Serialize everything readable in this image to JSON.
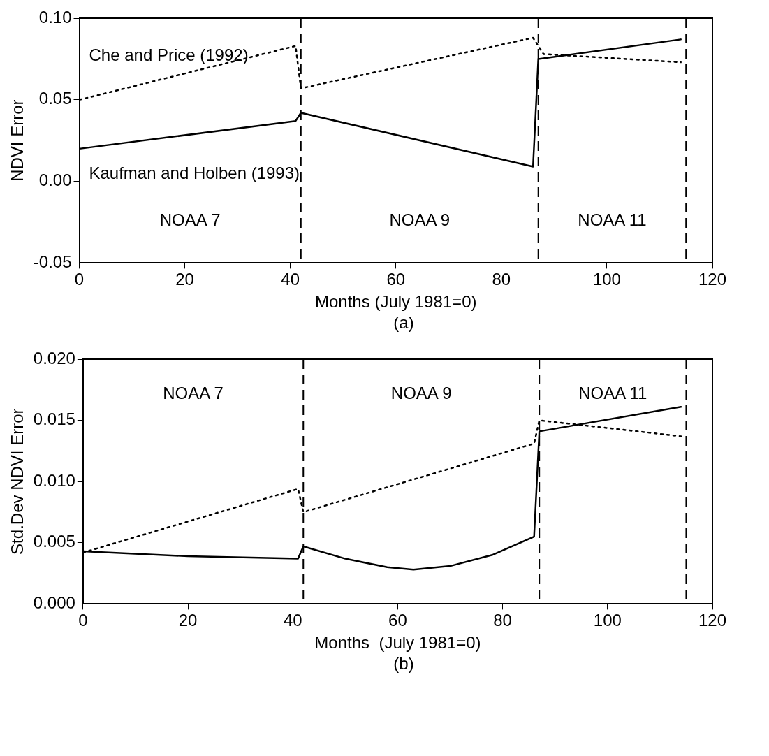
{
  "chart_data": [
    {
      "type": "line",
      "xlabel": "Months (July 1981=0)",
      "ylabel": "NDVI Error",
      "xlim": [
        0,
        120
      ],
      "xticks": [
        0,
        20,
        40,
        60,
        80,
        100,
        120
      ],
      "ylim": [
        -0.05,
        0.1
      ],
      "yticks": [
        {
          "value": -0.05,
          "label": "-0.05"
        },
        {
          "value": 0,
          "label": "0.00"
        },
        {
          "value": 0.05,
          "label": "0.05"
        },
        {
          "value": 0.1,
          "label": "0.10"
        }
      ],
      "grid": false,
      "legend": false,
      "marker": "none",
      "series": [
        {
          "name": "Che and Price (1992)",
          "color": "#000000",
          "line_style": "dotted",
          "x": [
            0,
            41,
            42,
            86,
            88,
            114
          ],
          "values": [
            0.05,
            0.083,
            0.057,
            0.088,
            0.078,
            0.073
          ]
        },
        {
          "name": "Kaufman and Holben (1993)",
          "color": "#000000",
          "line_style": "solid",
          "x": [
            0,
            41,
            42,
            86,
            87,
            114
          ],
          "values": [
            0.02,
            0.037,
            0.042,
            0.009,
            0.075,
            0.087
          ]
        }
      ],
      "ref_lines": [
        {
          "axis": "x",
          "value": 42,
          "line_style": "dashed"
        },
        {
          "axis": "x",
          "value": 87,
          "line_style": "dashed"
        },
        {
          "axis": "x",
          "value": 115,
          "line_style": "dashed"
        }
      ],
      "annotations": [
        "NOAA 7",
        "NOAA 9",
        "NOAA 11",
        "(a)"
      ]
    },
    {
      "type": "line",
      "xlabel": "Months  (July 1981=0)",
      "ylabel": "Std.Dev NDVI Error",
      "xlim": [
        0,
        120
      ],
      "xticks": [
        0,
        20,
        40,
        60,
        80,
        100,
        120
      ],
      "ylim": [
        0,
        0.02
      ],
      "yticks": [
        {
          "value": 0,
          "label": "0.000"
        },
        {
          "value": 0.005,
          "label": "0.005"
        },
        {
          "value": 0.01,
          "label": "0.010"
        },
        {
          "value": 0.015,
          "label": "0.015"
        },
        {
          "value": 0.02,
          "label": "0.020"
        }
      ],
      "grid": false,
      "legend": false,
      "marker": "none",
      "series": [
        {
          "color": "#000000",
          "line_style": "dotted",
          "x": [
            0,
            41,
            42,
            86,
            87,
            114
          ],
          "values": [
            0.0042,
            0.0094,
            0.0075,
            0.0131,
            0.015,
            0.0137
          ]
        },
        {
          "color": "#000000",
          "line_style": "solid",
          "x": [
            0,
            20,
            41,
            42,
            50,
            58,
            63,
            70,
            78,
            86,
            87,
            114
          ],
          "values": [
            0.0043,
            0.0039,
            0.0037,
            0.0047,
            0.0037,
            0.003,
            0.0028,
            0.0031,
            0.004,
            0.0055,
            0.0141,
            0.0161
          ]
        }
      ],
      "ref_lines": [
        {
          "axis": "x",
          "value": 42,
          "line_style": "dashed"
        },
        {
          "axis": "x",
          "value": 87,
          "line_style": "dashed"
        },
        {
          "axis": "x",
          "value": 115,
          "line_style": "dashed"
        }
      ],
      "annotations": [
        "NOAA 7",
        "NOAA 9",
        "NOAA 11",
        "(b)"
      ]
    }
  ]
}
